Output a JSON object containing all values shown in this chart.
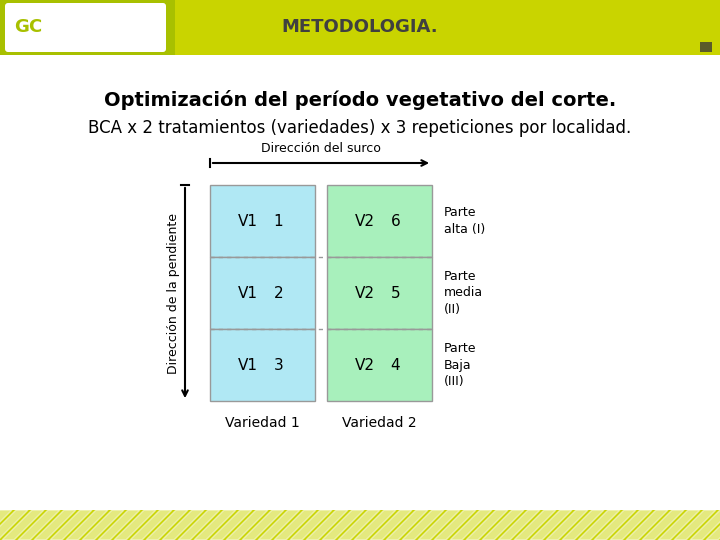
{
  "title_bold": "Optimización del período vegetativo del corte.",
  "title_normal": "BCA x 2 tratamientos (variedades) x 3 repeticiones por localidad.",
  "header_text": "METODOLOGIA.",
  "header_bg": "#c9d400",
  "logo_bg": "#a8c000",
  "main_bg": "#ffffff",
  "content_bg": "#f8f8f0",
  "footer_stripe_color": "#c9d400",
  "arrow_h_label": "Dirección del surco",
  "arrow_v_label": "Dirección de la pendiente",
  "col1_color": "#b0e8f4",
  "col2_color": "#a8f0bc",
  "col1_label": "Variedad 1",
  "col2_label": "Variedad 2",
  "cells": [
    {
      "row": 0,
      "col": 0,
      "v": "V1",
      "n": "1"
    },
    {
      "row": 1,
      "col": 0,
      "v": "V1",
      "n": "2"
    },
    {
      "row": 2,
      "col": 0,
      "v": "V1",
      "n": "3"
    },
    {
      "row": 0,
      "col": 1,
      "v": "V2",
      "n": "6"
    },
    {
      "row": 1,
      "col": 1,
      "v": "V2",
      "n": "5"
    },
    {
      "row": 2,
      "col": 1,
      "v": "V2",
      "n": "4"
    }
  ],
  "row_labels": [
    "Parte\nalta (I)",
    "Parte\nmedia\n(II)",
    "Parte\nBaja\n(III)"
  ]
}
